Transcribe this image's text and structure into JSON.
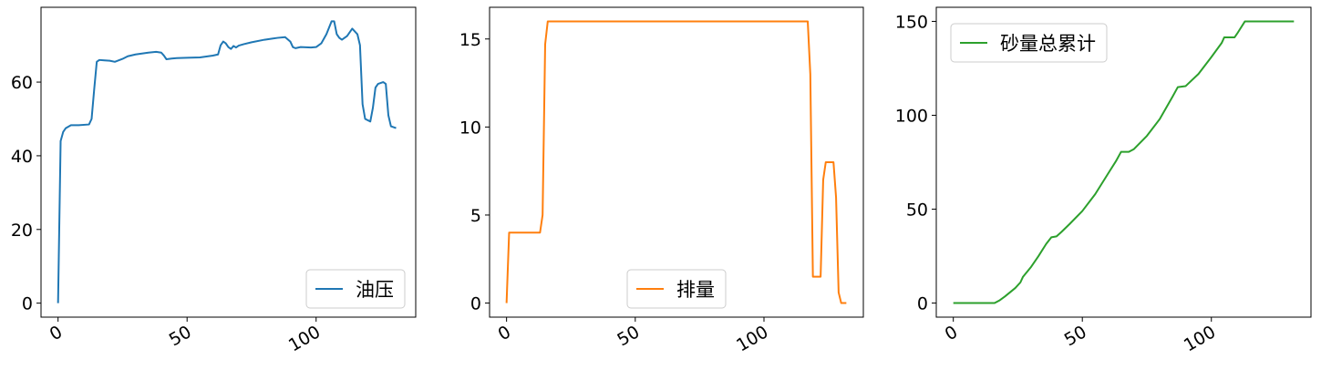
{
  "chart_data": [
    {
      "type": "line",
      "x": [
        0,
        1,
        2,
        3,
        5,
        8,
        12,
        13,
        14,
        15,
        16,
        18,
        20,
        22,
        25,
        27,
        30,
        35,
        38,
        40,
        41,
        42,
        44,
        46,
        50,
        55,
        60,
        62,
        63,
        64,
        65,
        66,
        67,
        68,
        69,
        70,
        72,
        75,
        80,
        83,
        85,
        88,
        90,
        91,
        92,
        94,
        98,
        100,
        102,
        104,
        106,
        107,
        108,
        109,
        110,
        112,
        114,
        116,
        117,
        118,
        119,
        121,
        122,
        123,
        124,
        126,
        127,
        128,
        129,
        131
      ],
      "series": [
        {
          "name": "油压",
          "color": "#1f77b4",
          "values": [
            0,
            44,
            46.5,
            47.5,
            48.3,
            48.3,
            48.5,
            50,
            58,
            65.5,
            66,
            65.9,
            65.8,
            65.5,
            66.3,
            67,
            67.5,
            68,
            68.2,
            68,
            67.2,
            66.2,
            66.4,
            66.5,
            66.6,
            66.7,
            67.2,
            67.5,
            70,
            71,
            70.5,
            69.5,
            69,
            69.8,
            69.4,
            69.9,
            70.3,
            70.8,
            71.5,
            71.8,
            72,
            72.2,
            71,
            69.5,
            69.2,
            69.5,
            69.4,
            69.5,
            70.5,
            73,
            76.5,
            76.5,
            73,
            72,
            71.5,
            72.5,
            74.5,
            73,
            70,
            54,
            50,
            49.3,
            53,
            58.5,
            59.5,
            60,
            59.5,
            51,
            48,
            47.5
          ]
        }
      ],
      "xlim": [
        -6.6,
        138.6
      ],
      "ylim": [
        -3.8,
        80.3
      ],
      "xticks": [
        0,
        50,
        100
      ],
      "yticks": [
        0,
        20,
        40,
        60
      ],
      "legend": "lower right"
    },
    {
      "type": "line",
      "x": [
        0,
        1,
        5,
        13,
        14,
        15,
        16,
        117,
        118,
        119,
        122,
        123,
        124,
        127,
        128,
        129,
        130,
        132
      ],
      "series": [
        {
          "name": "排量",
          "color": "#ff7f0e",
          "values": [
            0,
            4,
            4,
            4,
            5,
            14.7,
            16,
            16,
            13,
            1.5,
            1.5,
            7,
            8,
            8,
            6,
            0.6,
            0,
            0
          ]
        }
      ],
      "xlim": [
        -6.6,
        138.6
      ],
      "ylim": [
        -0.8,
        16.8
      ],
      "xticks": [
        0,
        50,
        100
      ],
      "yticks": [
        0,
        5,
        10,
        15
      ],
      "legend": "lower center"
    },
    {
      "type": "line",
      "x": [
        0,
        16,
        18,
        20,
        24,
        26,
        27,
        30,
        33,
        36,
        38,
        40,
        42,
        45,
        50,
        55,
        60,
        63,
        65,
        68,
        70,
        75,
        80,
        85,
        87,
        90,
        95,
        100,
        104,
        105,
        109,
        110,
        113,
        132
      ],
      "series": [
        {
          "name": "砂量总累计",
          "color": "#2ca02c",
          "values": [
            0,
            0,
            1.5,
            3.5,
            8,
            11,
            14,
            19,
            25,
            31.5,
            35,
            35.5,
            38,
            42,
            49,
            58,
            69,
            75.5,
            80.5,
            80.5,
            82,
            89,
            98,
            110,
            115,
            115.5,
            122,
            131,
            138.5,
            141.5,
            141.5,
            143.5,
            150,
            150
          ]
        }
      ],
      "xlim": [
        -6.6,
        138.6
      ],
      "ylim": [
        -7.5,
        157.5
      ],
      "xticks": [
        0,
        50,
        100
      ],
      "yticks": [
        0,
        50,
        100,
        150
      ],
      "legend": "upper left"
    }
  ]
}
